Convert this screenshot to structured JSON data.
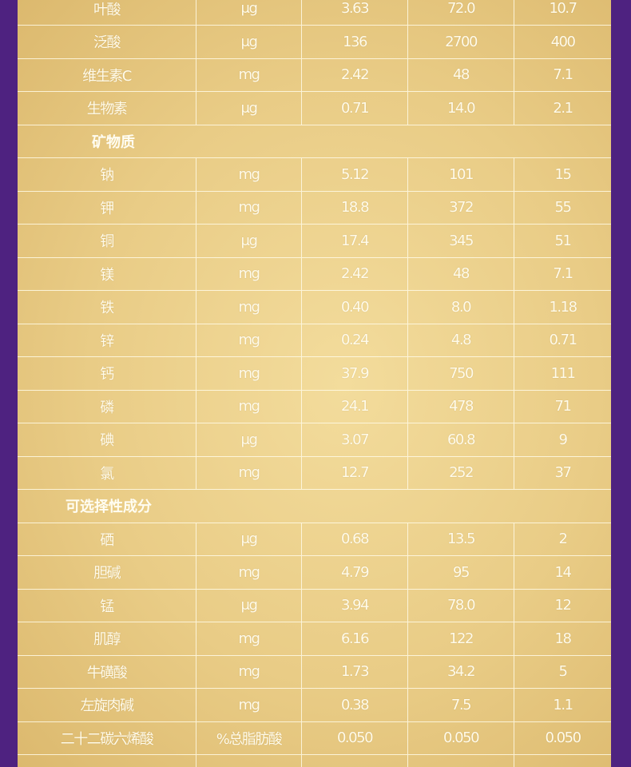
{
  "table": {
    "rows": [
      [
        "叶酸",
        "μg",
        "3.63",
        "72.0",
        "10.7"
      ],
      [
        "泛酸",
        "μg",
        "136",
        "2700",
        "400"
      ],
      [
        "维生素C",
        "mg",
        "2.42",
        "48",
        "7.1"
      ],
      [
        "生物素",
        "μg",
        "0.71",
        "14.0",
        "2.1"
      ],
      {
        "heading": "矿物质"
      },
      [
        "钠",
        "mg",
        "5.12",
        "101",
        "15"
      ],
      [
        "钾",
        "mg",
        "18.8",
        "372",
        "55"
      ],
      [
        "铜",
        "μg",
        "17.4",
        "345",
        "51"
      ],
      [
        "镁",
        "mg",
        "2.42",
        "48",
        "7.1"
      ],
      [
        "铁",
        "mg",
        "0.40",
        "8.0",
        "1.18"
      ],
      [
        "锌",
        "mg",
        "0.24",
        "4.8",
        "0.71"
      ],
      [
        "钙",
        "mg",
        "37.9",
        "750",
        "111"
      ],
      [
        "磷",
        "mg",
        "24.1",
        "478",
        "71"
      ],
      [
        "碘",
        "μg",
        "3.07",
        "60.8",
        "9"
      ],
      [
        "氯",
        "mg",
        "12.7",
        "252",
        "37"
      ],
      {
        "heading": "可选择性成分"
      },
      [
        "硒",
        "μg",
        "0.68",
        "13.5",
        "2"
      ],
      [
        "胆碱",
        "mg",
        "4.79",
        "95",
        "14"
      ],
      [
        "锰",
        "μg",
        "3.94",
        "78.0",
        "12"
      ],
      [
        "肌醇",
        "mg",
        "6.16",
        "122",
        "18"
      ],
      [
        "牛磺酸",
        "mg",
        "1.73",
        "34.2",
        "5"
      ],
      [
        "左旋肉碱",
        "mg",
        "0.38",
        "7.5",
        "1.1"
      ],
      [
        "二十二碳六烯酸",
        "%总脂肪酸",
        "0.050",
        "0.050",
        "0.050"
      ]
    ]
  }
}
